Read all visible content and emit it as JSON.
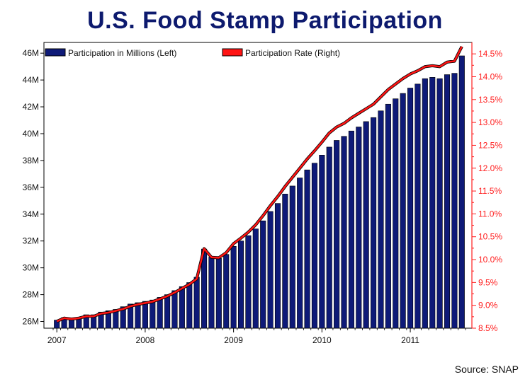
{
  "title": "U.S. Food Stamp Participation",
  "source": "Source: SNAP",
  "colors": {
    "bar": "#0e1a78",
    "bar_edge": "#000000",
    "line": "#ff1414",
    "title": "#0d1a6e",
    "right_axis": "#ff1e1e"
  },
  "chart_data": {
    "type": "bar",
    "title": "U.S. Food Stamp Participation",
    "x_ticks": [
      "2007",
      "2008",
      "2009",
      "2010",
      "2011"
    ],
    "x_tick_month_index": [
      0,
      12,
      24,
      36,
      48
    ],
    "y_left": {
      "range": [
        25.5,
        46.8
      ],
      "ticks": [
        "26M",
        "28M",
        "30M",
        "32M",
        "34M",
        "36M",
        "38M",
        "40M",
        "42M",
        "44M",
        "46M"
      ],
      "tick_values": [
        26,
        28,
        30,
        32,
        34,
        36,
        38,
        40,
        42,
        44,
        46
      ]
    },
    "y_right": {
      "range": [
        8.5,
        14.75
      ],
      "ticks": [
        "8.5%",
        "9.0%",
        "9.5%",
        "10.0%",
        "10.5%",
        "11.0%",
        "11.5%",
        "12.0%",
        "12.5%",
        "13.0%",
        "13.5%",
        "14.0%",
        "14.5%"
      ],
      "tick_values": [
        8.5,
        9.0,
        9.5,
        10.0,
        10.5,
        11.0,
        11.5,
        12.0,
        12.5,
        13.0,
        13.5,
        14.0,
        14.5
      ]
    },
    "series": [
      {
        "name": "Participation in Millions (Left)",
        "type": "bar",
        "axis": "left",
        "values": [
          26.1,
          26.3,
          26.2,
          26.3,
          26.5,
          26.5,
          26.7,
          26.8,
          26.9,
          27.1,
          27.3,
          27.4,
          27.5,
          27.6,
          27.8,
          28.0,
          28.3,
          28.6,
          28.9,
          29.3,
          31.4,
          30.8,
          30.7,
          31.0,
          31.6,
          32.0,
          32.4,
          32.9,
          33.5,
          34.2,
          34.8,
          35.5,
          36.1,
          36.7,
          37.3,
          37.8,
          38.4,
          39.0,
          39.5,
          39.8,
          40.2,
          40.5,
          40.9,
          41.2,
          41.7,
          42.2,
          42.6,
          43.0,
          43.4,
          43.7,
          44.1,
          44.2,
          44.1,
          44.4,
          44.5,
          45.8
        ]
      },
      {
        "name": "Participation Rate (Right)",
        "type": "line",
        "axis": "right",
        "values": [
          8.65,
          8.72,
          8.7,
          8.72,
          8.76,
          8.76,
          8.82,
          8.84,
          8.88,
          8.92,
          8.98,
          9.02,
          9.05,
          9.08,
          9.14,
          9.2,
          9.28,
          9.37,
          9.46,
          9.58,
          10.24,
          10.05,
          10.04,
          10.15,
          10.35,
          10.47,
          10.6,
          10.76,
          10.96,
          11.18,
          11.38,
          11.6,
          11.8,
          12.0,
          12.2,
          12.38,
          12.57,
          12.77,
          12.9,
          12.98,
          13.1,
          13.2,
          13.3,
          13.4,
          13.56,
          13.72,
          13.84,
          13.96,
          14.06,
          14.13,
          14.22,
          14.24,
          14.22,
          14.32,
          14.34,
          14.66
        ]
      }
    ],
    "legend": {
      "placement": "top-left",
      "entries": [
        "Participation in Millions (Left)",
        "Participation Rate (Right)"
      ]
    }
  }
}
